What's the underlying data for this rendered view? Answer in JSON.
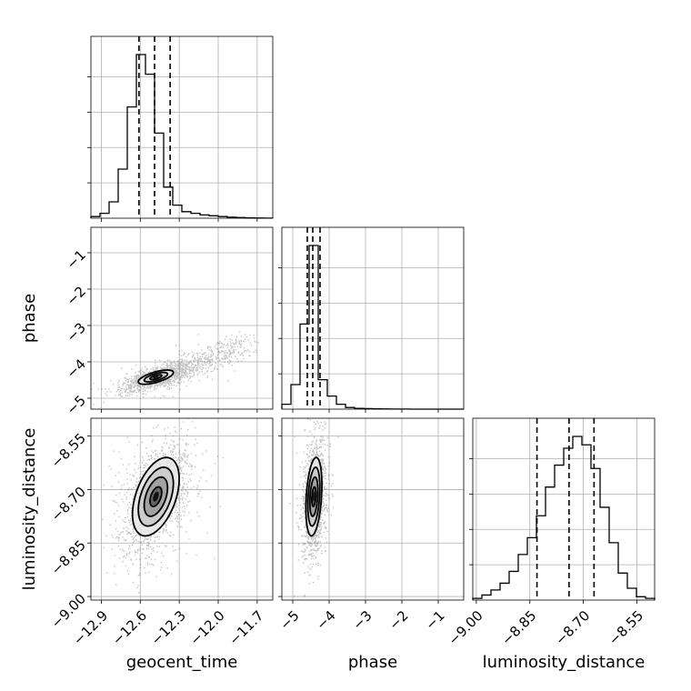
{
  "chart_data": {
    "type": "corner",
    "parameters": [
      "geocent_time",
      "phase",
      "luminosity_distance"
    ],
    "axes": {
      "geocent_time": {
        "label": "geocent_time",
        "range": [
          -12.98,
          -11.58
        ],
        "ticks": [
          -12.9,
          -12.6,
          -12.3,
          -12.0,
          -11.7
        ],
        "tick_labels": [
          "−12.9",
          "−12.6",
          "−12.3",
          "−12.0",
          "−11.7"
        ]
      },
      "phase": {
        "label": "phase",
        "range": [
          -5.3,
          -0.3
        ],
        "ticks": [
          -5,
          -4,
          -3,
          -2,
          -1
        ],
        "tick_labels": [
          "−5",
          "−4",
          "−3",
          "−2",
          "−1"
        ]
      },
      "luminosity_distance": {
        "label": "luminosity_distance",
        "range": [
          -9.01,
          -8.5
        ],
        "ticks": [
          -9.0,
          -8.85,
          -8.7,
          -8.55
        ],
        "tick_labels": [
          "−9.00",
          "−8.85",
          "−8.70",
          "−8.55"
        ]
      }
    },
    "marginals": [
      {
        "parameter": "geocent_time",
        "bin_edges": [
          -12.98,
          -12.91,
          -12.84,
          -12.77,
          -12.7,
          -12.63,
          -12.56,
          -12.49,
          -12.42,
          -12.35,
          -12.28,
          -12.21,
          -12.14,
          -12.07,
          -12.0,
          -11.93,
          -11.86,
          -11.79,
          -11.72,
          -11.65,
          -11.58
        ],
        "counts": [
          1,
          3,
          10,
          30,
          68,
          100,
          88,
          52,
          19,
          8,
          4,
          3,
          2,
          1.5,
          1,
          0.6,
          0.4,
          0.2,
          0.1,
          0.05
        ],
        "quantiles": [
          -12.61,
          -12.49,
          -12.37
        ]
      },
      {
        "parameter": "phase",
        "bin_edges": [
          -5.3,
          -5.05,
          -4.8,
          -4.55,
          -4.3,
          -4.05,
          -3.8,
          -3.55,
          -3.3,
          -3.05,
          -2.8,
          -2.55,
          -2.3,
          -2.05,
          -1.8,
          -1.55,
          -1.3,
          -1.05,
          -0.8,
          -0.55,
          -0.3
        ],
        "counts": [
          3,
          15,
          52,
          100,
          18,
          8,
          3,
          1,
          0.5,
          0.3,
          0.2,
          0.1,
          0.05,
          0.05,
          0,
          0,
          0,
          0,
          0,
          0
        ],
        "quantiles": [
          -4.6,
          -4.45,
          -4.25
        ]
      },
      {
        "parameter": "luminosity_distance",
        "bin_edges": [
          -9.01,
          -8.9845,
          -8.959,
          -8.9335,
          -8.908,
          -8.8825,
          -8.857,
          -8.8315,
          -8.806,
          -8.7805,
          -8.755,
          -8.7295,
          -8.704,
          -8.6785,
          -8.653,
          -8.6275,
          -8.602,
          -8.5765,
          -8.551,
          -8.5255,
          -8.5
        ],
        "counts": [
          1,
          3,
          6,
          10,
          17,
          27,
          37,
          50,
          67,
          80,
          90,
          97,
          92,
          78,
          55,
          34,
          16,
          7,
          2,
          1
        ],
        "quantiles": [
          -8.83,
          -8.74,
          -8.67
        ]
      }
    ],
    "pairs": [
      {
        "x": "geocent_time",
        "y": "phase",
        "center": [
          -12.48,
          -4.42
        ],
        "sigma": [
          0.09,
          0.13
        ],
        "correlation": 0.65,
        "tail_toward": [
          -11.8,
          -3.5
        ],
        "contour_levels": [
          0.5,
          1.0,
          1.5
        ]
      },
      {
        "x": "geocent_time",
        "y": "luminosity_distance",
        "center": [
          -12.48,
          -8.72
        ],
        "sigma": [
          0.09,
          0.055
        ],
        "correlation": 0.45,
        "contour_levels": [
          0.5,
          1.0,
          1.5,
          2.0
        ]
      },
      {
        "x": "phase",
        "y": "luminosity_distance",
        "center": [
          -4.42,
          -8.72
        ],
        "sigma": [
          0.11,
          0.055
        ],
        "correlation": 0.3,
        "contour_levels": [
          0.5,
          1.0,
          1.5,
          2.0
        ]
      }
    ]
  }
}
